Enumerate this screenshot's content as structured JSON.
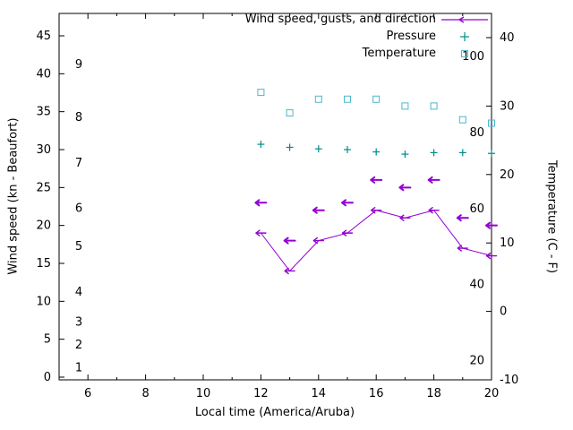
{
  "chart_data": {
    "type": "line",
    "xlabel": "Local time (America/Aruba)",
    "ylabel_left": "Wind speed (kn - Beaufort)",
    "ylabel_right": "Temperature (C - F)",
    "xlim": [
      5,
      20
    ],
    "x_major_ticks": [
      6,
      8,
      10,
      12,
      14,
      16,
      18,
      20
    ],
    "left_axis": {
      "ticks_kn": [
        0,
        5,
        10,
        15,
        20,
        25,
        30,
        35,
        40,
        45
      ],
      "beaufort": [
        {
          "text": "1",
          "kn": 1
        },
        {
          "text": "2",
          "kn": 4
        },
        {
          "text": "3",
          "kn": 7
        },
        {
          "text": "4",
          "kn": 11
        },
        {
          "text": "5",
          "kn": 17
        },
        {
          "text": "6",
          "kn": 22
        },
        {
          "text": "7",
          "kn": 28
        },
        {
          "text": "8",
          "kn": 34
        },
        {
          "text": "9",
          "kn": 41
        }
      ]
    },
    "right_axis": {
      "ticks_c": [
        -10,
        0,
        10,
        20,
        30,
        40
      ],
      "fahrenheit": [
        20,
        40,
        60,
        80,
        100
      ]
    },
    "legend": [
      {
        "label": "Wind speed, gusts, and direction",
        "marker": "arrow-line",
        "color": "#9400d3"
      },
      {
        "label": "Pressure",
        "marker": "plus",
        "color": "#008b8b"
      },
      {
        "label": "Temperature",
        "marker": "square",
        "color": "#4db6cf"
      }
    ],
    "series": {
      "wind": {
        "name": "Wind speed, gusts, and direction",
        "color": "#9400d3",
        "arrow_direction": "left",
        "x": [
          12,
          13,
          14,
          15,
          16,
          17,
          18,
          19,
          20
        ],
        "speed_kn": [
          19,
          14,
          18,
          19,
          22,
          21,
          22,
          17,
          16
        ],
        "gusts_kn": [
          23,
          18,
          22,
          23,
          26,
          25,
          26,
          21,
          20
        ]
      },
      "pressure": {
        "name": "Pressure",
        "color": "#008b8b",
        "x": [
          12,
          13,
          14,
          15,
          16,
          17,
          18,
          19,
          20
        ],
        "values_inHg": [
          30.7,
          30.3,
          30.1,
          30.0,
          29.7,
          29.4,
          29.6,
          29.6,
          29.5
        ]
      },
      "temperature": {
        "name": "Temperature",
        "color": "#4db6cf",
        "x": [
          12,
          13,
          14,
          15,
          16,
          17,
          18,
          19,
          20
        ],
        "values_c": [
          32,
          29,
          31,
          31,
          31,
          30,
          30,
          28,
          27.5
        ]
      }
    }
  }
}
